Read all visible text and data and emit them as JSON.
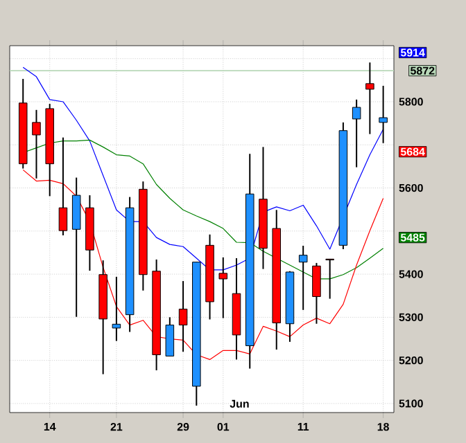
{
  "chart_data": {
    "type": "candlestick",
    "categories": [
      null,
      null,
      "14",
      null,
      null,
      null,
      null,
      "21",
      null,
      null,
      null,
      null,
      "29",
      null,
      null,
      "01",
      null,
      null,
      null,
      null,
      null,
      "11",
      null,
      null,
      null,
      null,
      null,
      "18"
    ],
    "ohlc": [
      [
        5797,
        5853,
        5645,
        5656
      ],
      [
        5752,
        5781,
        5622,
        5723
      ],
      [
        5784,
        5795,
        5581,
        5656
      ],
      [
        5554,
        5717,
        5490,
        5501
      ],
      [
        5504,
        5624,
        5301,
        5583
      ],
      [
        5554,
        5583,
        5408,
        5456
      ],
      [
        5399,
        5432,
        5168,
        5296
      ],
      [
        5275,
        5394,
        5245,
        5284
      ],
      [
        5306,
        5579,
        5266,
        5554
      ],
      [
        5597,
        5615,
        5362,
        5399
      ],
      [
        5407,
        5434,
        5177,
        5213
      ],
      [
        5210,
        5300,
        5210,
        5282
      ],
      [
        5319,
        5384,
        5220,
        5282
      ],
      [
        5140,
        5428,
        5095,
        5428
      ],
      [
        5467,
        5492,
        5295,
        5336
      ],
      [
        5402,
        5439,
        5298,
        5389
      ],
      [
        5355,
        5437,
        5202,
        5259
      ],
      [
        5234,
        5679,
        5181,
        5586
      ],
      [
        5574,
        5695,
        5412,
        5460
      ],
      [
        5506,
        5549,
        5225,
        5287
      ],
      [
        5285,
        5407,
        5243,
        5405
      ],
      [
        5428,
        5466,
        5317,
        5444
      ],
      [
        5419,
        5426,
        5285,
        5348
      ],
      [
        5435,
        5435,
        5343,
        5433
      ],
      [
        5467,
        5752,
        5458,
        5733
      ],
      [
        5760,
        5805,
        5648,
        5787
      ],
      [
        5842,
        5891,
        5725,
        5829
      ],
      [
        5752,
        5837,
        5704,
        5763
      ]
    ],
    "colors": [
      "#ff0000",
      "#ff0000",
      "#ff0000",
      "#ff0000",
      "#1e90ff",
      "#ff0000",
      "#ff0000",
      "#1e90ff",
      "#1e90ff",
      "#ff0000",
      "#ff0000",
      "#1e90ff",
      "#ff0000",
      "#1e90ff",
      "#ff0000",
      "#ff0000",
      "#ff0000",
      "#1e90ff",
      "#ff0000",
      "#ff0000",
      "#1e90ff",
      "#1e90ff",
      "#ff0000",
      "#ff0000",
      "#1e90ff",
      "#1e90ff",
      "#ff0000",
      "#1e90ff"
    ],
    "series": [
      {
        "type": "line",
        "color": "#0000ff",
        "values": [
          5880,
          5858,
          5805,
          5800,
          5757,
          5709,
          5629,
          5549,
          5522,
          5522,
          5485,
          5469,
          5464,
          5437,
          5410,
          5410,
          5421,
          5437,
          5544,
          5556,
          5547,
          5560,
          5512,
          5458,
          null,
          5608,
          5677,
          5736
        ]
      },
      {
        "type": "line",
        "color": "#008000",
        "values": [
          5682,
          5693,
          5704,
          5709,
          5709,
          5711,
          5695,
          5677,
          5674,
          5656,
          5608,
          5576,
          5549,
          5535,
          5522,
          5506,
          5474,
          5473,
          5453,
          5437,
          5421,
          5405,
          5389,
          5389,
          5399,
          5415,
          5437,
          5460
        ]
      },
      {
        "type": "line",
        "color": "#ff0000",
        "values": [
          5642,
          5616,
          5618,
          5610,
          5581,
          5522,
          5416,
          5325,
          5282,
          5293,
          5255,
          5250,
          5247,
          5213,
          5202,
          5223,
          5223,
          5215,
          5279,
          5268,
          5255,
          5282,
          5298,
          5285,
          5330,
          5421,
          5501,
          5576
        ]
      }
    ],
    "ylim": [
      5079,
      5930
    ],
    "yticks": [
      5100,
      5200,
      5300,
      5400,
      5485,
      {
        "value": 5500,
        "label": null
      },
      5600,
      5684,
      {
        "value": 5700,
        "label": null
      },
      5800,
      {
        "value": 5900,
        "label": null
      },
      5914
    ],
    "grid": true,
    "ref_lines": [
      {
        "axis": "y",
        "value": 5872,
        "label": "5872",
        "color": "#b8d8b8"
      }
    ],
    "annotations": [
      "Jun"
    ]
  }
}
